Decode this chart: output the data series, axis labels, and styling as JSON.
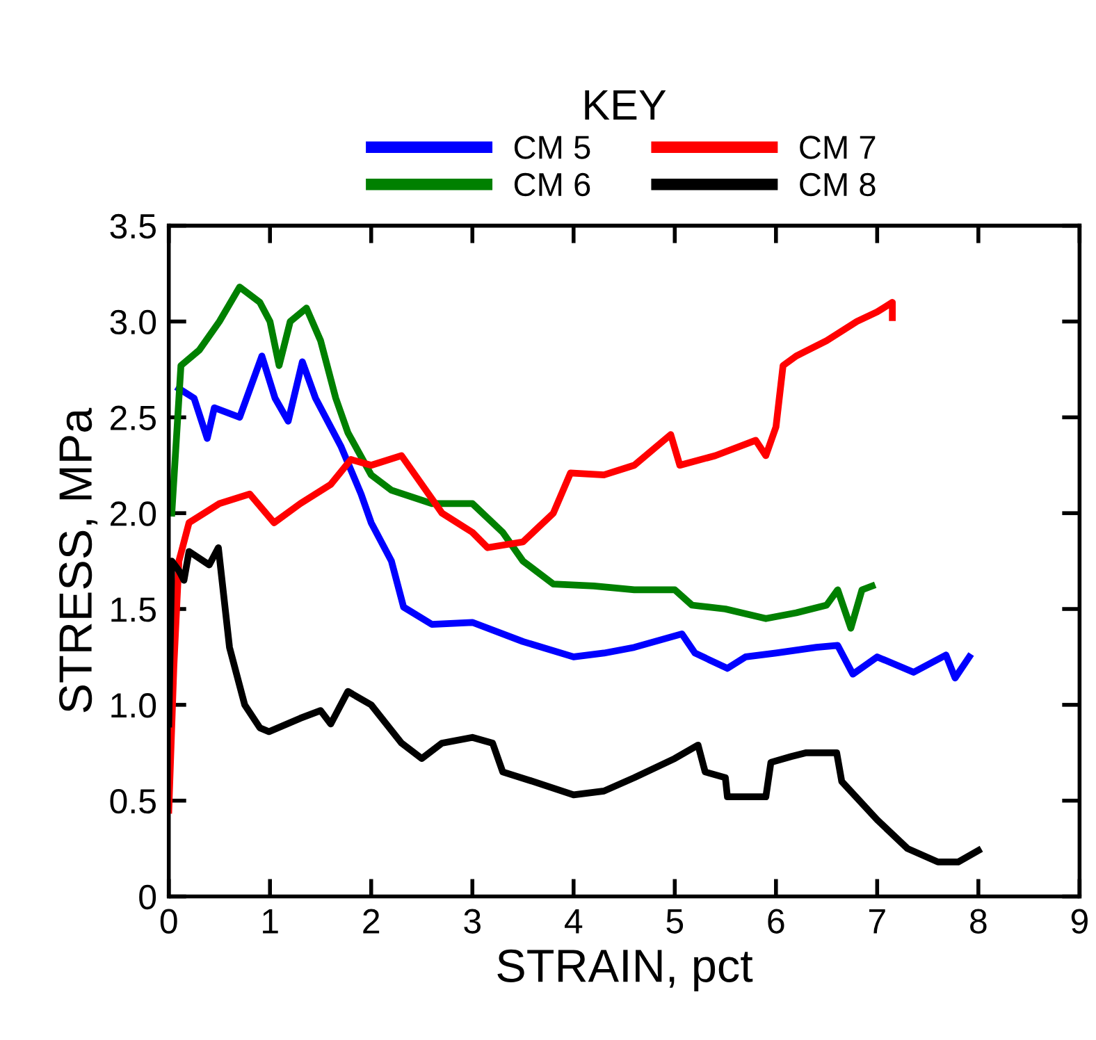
{
  "chart_data": {
    "type": "line",
    "xlabel": "STRAIN, pct",
    "ylabel": "STRESS, MPa",
    "legend_title": "KEY",
    "legend": "top",
    "grid": false,
    "marker": "none",
    "line_style": "solid",
    "xlim": [
      0,
      9
    ],
    "xticks": [
      0,
      1,
      2,
      3,
      4,
      5,
      6,
      7,
      8,
      9
    ],
    "ylim": [
      0,
      3.5
    ],
    "yticks": [
      0,
      {
        "value": 0.5,
        "label": "0.5"
      },
      {
        "value": 1,
        "label": "1.0"
      },
      {
        "value": 1.5,
        "label": "1.5"
      },
      {
        "value": 2,
        "label": "2.0"
      },
      {
        "value": 2.5,
        "label": "2.5"
      },
      {
        "value": 3,
        "label": "3.0"
      },
      {
        "value": 3.5,
        "label": "3.5"
      }
    ],
    "series": [
      {
        "name": "CM 5",
        "color": "#0000ff",
        "x": [
          0.1,
          0.25,
          0.38,
          0.45,
          0.7,
          0.92,
          1.05,
          1.18,
          1.32,
          1.45,
          1.7,
          1.9,
          2.0,
          2.2,
          2.32,
          2.6,
          3.0,
          3.5,
          4.0,
          4.3,
          4.6,
          5.07,
          5.2,
          5.52,
          5.7,
          6.0,
          6.4,
          6.61,
          6.76,
          7.0,
          7.36,
          7.68,
          7.77,
          7.91
        ],
        "values": [
          2.65,
          2.6,
          2.39,
          2.55,
          2.5,
          2.82,
          2.6,
          2.48,
          2.79,
          2.6,
          2.35,
          2.1,
          1.95,
          1.75,
          1.51,
          1.42,
          1.43,
          1.33,
          1.25,
          1.27,
          1.3,
          1.37,
          1.27,
          1.19,
          1.25,
          1.27,
          1.3,
          1.31,
          1.16,
          1.25,
          1.17,
          1.26,
          1.14,
          1.25
        ]
      },
      {
        "name": "CM 6",
        "color": "#008000",
        "x": [
          0.03,
          0.12,
          0.3,
          0.5,
          0.7,
          0.9,
          1.0,
          1.09,
          1.2,
          1.36,
          1.5,
          1.65,
          1.77,
          2.0,
          2.2,
          2.6,
          3.0,
          3.3,
          3.5,
          3.8,
          4.2,
          4.6,
          5.0,
          5.17,
          5.5,
          5.9,
          6.2,
          6.5,
          6.61,
          6.74,
          6.85,
          6.95
        ],
        "values": [
          2.0,
          2.77,
          2.85,
          3.0,
          3.18,
          3.1,
          3.0,
          2.77,
          3.0,
          3.07,
          2.9,
          2.6,
          2.42,
          2.2,
          2.12,
          2.05,
          2.05,
          1.9,
          1.75,
          1.63,
          1.62,
          1.6,
          1.6,
          1.52,
          1.5,
          1.45,
          1.48,
          1.52,
          1.6,
          1.4,
          1.6,
          1.62
        ]
      },
      {
        "name": "CM 7",
        "color": "#ff0000",
        "x": [
          0,
          0.05,
          0.1,
          0.2,
          0.5,
          0.8,
          1.04,
          1.3,
          1.6,
          1.8,
          2.0,
          2.3,
          2.5,
          2.7,
          3.0,
          3.15,
          3.5,
          3.8,
          3.97,
          4.3,
          4.6,
          4.96,
          5.05,
          5.4,
          5.8,
          5.9,
          6.0,
          6.07,
          6.2,
          6.5,
          6.8,
          7.0,
          7.15,
          7.15
        ],
        "values": [
          0.45,
          1.2,
          1.75,
          1.95,
          2.05,
          2.1,
          1.95,
          2.05,
          2.15,
          2.28,
          2.25,
          2.3,
          2.15,
          2.0,
          1.9,
          1.82,
          1.85,
          2.0,
          2.21,
          2.2,
          2.25,
          2.41,
          2.25,
          2.3,
          2.38,
          2.3,
          2.45,
          2.77,
          2.82,
          2.9,
          3.0,
          3.05,
          3.1,
          3.02
        ]
      },
      {
        "name": "CM 8",
        "color": "#000000",
        "x": [
          0,
          0.03,
          0.1,
          0.15,
          0.2,
          0.4,
          0.49,
          0.6,
          0.75,
          0.9,
          0.99,
          1.3,
          1.5,
          1.6,
          1.77,
          2.0,
          2.3,
          2.5,
          2.7,
          3.0,
          3.2,
          3.3,
          3.6,
          4.0,
          4.3,
          4.6,
          5.0,
          5.23,
          5.3,
          5.5,
          5.52,
          5.9,
          5.95,
          6.15,
          6.3,
          6.6,
          6.65,
          7.0,
          7.3,
          7.6,
          7.8,
          8.0
        ],
        "values": [
          0.9,
          1.75,
          1.7,
          1.65,
          1.8,
          1.73,
          1.82,
          1.3,
          1.0,
          0.88,
          0.86,
          0.93,
          0.97,
          0.9,
          1.07,
          1.0,
          0.8,
          0.72,
          0.8,
          0.83,
          0.8,
          0.65,
          0.6,
          0.53,
          0.55,
          0.62,
          0.72,
          0.79,
          0.65,
          0.62,
          0.52,
          0.52,
          0.7,
          0.73,
          0.75,
          0.75,
          0.6,
          0.4,
          0.25,
          0.18,
          0.18,
          0.24
        ]
      }
    ]
  }
}
